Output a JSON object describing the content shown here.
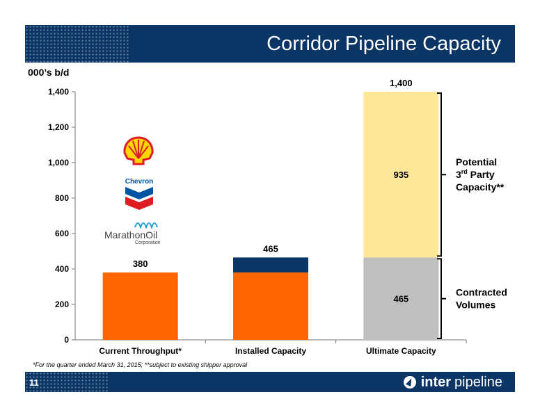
{
  "slide": {
    "title": "Corridor Pipeline Capacity",
    "page_number": "11",
    "footnote": "*For the quarter ended March 31, 2015; **subject to existing shipper approval",
    "brand": {
      "strong": "inter",
      "rest": "pipeline"
    },
    "colors": {
      "navy": "#0b3565",
      "orange": "#ff6600",
      "light_yellow": "#ffe799",
      "grey": "#c0c0c0"
    }
  },
  "logos": {
    "chevron_text": "Chevron",
    "marathon_text": "MarathonOil",
    "marathon_sub": "Corporation"
  },
  "chart_data": {
    "type": "bar",
    "stacked": true,
    "unit_label": "000’s b/d",
    "ylim": [
      0,
      1400
    ],
    "yticks": [
      0,
      200,
      400,
      600,
      800,
      1000,
      1200,
      1400
    ],
    "ytick_labels": [
      "0",
      "200",
      "400",
      "600",
      "800",
      "1,000",
      "1,200",
      "1,400"
    ],
    "categories": [
      "Current Throughput*",
      "Installed Capacity",
      "Ultimate Capacity"
    ],
    "segments": [
      [
        {
          "value": 380,
          "color": "#ff6600"
        }
      ],
      [
        {
          "value": 380,
          "color": "#ff6600"
        },
        {
          "value": 85,
          "color": "#0b3565"
        }
      ],
      [
        {
          "value": 465,
          "color": "#c0c0c0",
          "label": "465"
        },
        {
          "value": 935,
          "color": "#ffe799",
          "label": "935"
        }
      ]
    ],
    "totals": [
      "380",
      "465",
      "1,400"
    ],
    "brackets": [
      {
        "from": 0,
        "to": 465,
        "label_lines": [
          "Contracted",
          "Volumes"
        ]
      },
      {
        "from": 465,
        "to": 1400,
        "label_lines": [
          "Potential",
          "3rd Party",
          "Capacity**"
        ]
      }
    ],
    "grid": false,
    "legend": "none"
  }
}
